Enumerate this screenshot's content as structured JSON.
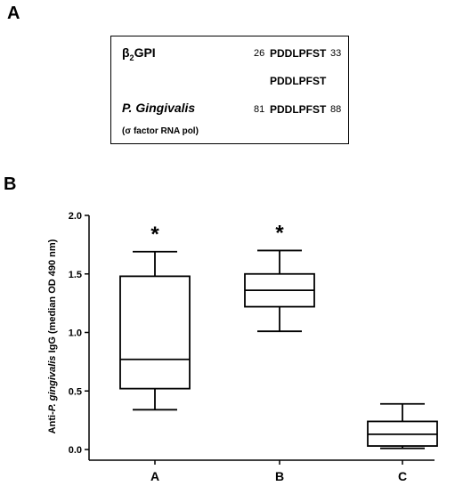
{
  "panel_a": {
    "letter": "A",
    "row1_name_main": "β",
    "row1_name_sub": "2",
    "row1_name_rest": "GPI",
    "row1_start": "26",
    "row1_seq": "PDDLPFST",
    "row1_end": "33",
    "middle_seq": "PDDLPFST",
    "row2_name": "P. Gingivalis",
    "row2_start": "81",
    "row2_seq": "PDDLPFST",
    "row2_end": "88",
    "row2_note": "(σ factor RNA pol)"
  },
  "chart_data": {
    "type": "box",
    "panel_letter": "B",
    "ylabel_prefix": "Anti-",
    "ylabel_italic": "P. gingivalis",
    "ylabel_suffix": " IgG (median OD 490 nm)",
    "ylim": [
      0.0,
      2.0
    ],
    "yticks": [
      "0.0",
      "0.5",
      "1.0",
      "1.5",
      "2.0"
    ],
    "ytick_values": [
      0.0,
      0.5,
      1.0,
      1.5,
      2.0
    ],
    "categories": [
      "A",
      "B",
      "C"
    ],
    "boxes": [
      {
        "category": "A",
        "whisker_low": 0.34,
        "q1": 0.52,
        "median": 0.77,
        "q3": 1.48,
        "whisker_high": 1.69,
        "marker": "*"
      },
      {
        "category": "B",
        "whisker_low": 1.01,
        "q1": 1.22,
        "median": 1.36,
        "q3": 1.5,
        "whisker_high": 1.7,
        "marker": "*"
      },
      {
        "category": "C",
        "whisker_low": 0.01,
        "q1": 0.03,
        "median": 0.13,
        "q3": 0.24,
        "whisker_high": 0.39,
        "marker": ""
      }
    ]
  }
}
